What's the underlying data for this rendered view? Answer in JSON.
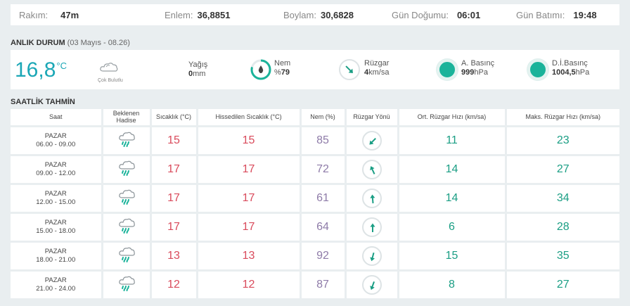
{
  "info": {
    "rakim_label": "Rakım:",
    "rakim": "47m",
    "enlem_label": "Enlem:",
    "enlem": "36,8851",
    "boylam_label": "Boylam:",
    "boylam": "30,6828",
    "gundogumu_label": "Gün Doğumu:",
    "gundogumu": "06:01",
    "gunbatimi_label": "Gün Batımı:",
    "gunbatimi": "19:48"
  },
  "current": {
    "title": "ANLIK DURUM",
    "subtitle": "(03 Mayıs - 08.26)",
    "temp": "16,8",
    "temp_unit": "°C",
    "condition": "Çok Bulutlu",
    "yagis_label": "Yağış",
    "yagis_value": "0",
    "yagis_unit": "mm",
    "nem_label": "Nem",
    "nem_prefix": "%",
    "nem_value": "79",
    "ruzgar_label": "Rüzgar",
    "ruzgar_value": "4",
    "ruzgar_unit": "km/sa",
    "abasinc_label": "A. Basınç",
    "abasinc_value": "999",
    "abasinc_unit": "hPa",
    "dibasinc_label": "D.İ.Basınç",
    "dibasinc_value": "1004,5",
    "dibasinc_unit": "hPa",
    "nem_percent": 79,
    "colors": {
      "teal": "#1ba7b6",
      "green": "#1ab39a"
    }
  },
  "forecast": {
    "title": "SAATLİK TAHMİN",
    "headers": {
      "saat": "Saat",
      "hadise_1": "Beklenen",
      "hadise_2": "Hadise",
      "sicaklik": "Sıcaklık (°C)",
      "hissedilen": "Hissedilen Sıcaklık (°C)",
      "nem": "Nem (%)",
      "yon": "Rüzgar Yönü",
      "ort": "Ort. Rüzgar Hızı (km/sa)",
      "maks": "Maks. Rüzgar Hızı (km/sa)"
    },
    "rows": [
      {
        "day": "PAZAR",
        "time": "06.00 - 09.00",
        "icon": "rain-cloud-icon",
        "temp": "15",
        "feels": "15",
        "humidity": "85",
        "wind_dir_deg": 225,
        "avg": "11",
        "max": "23"
      },
      {
        "day": "PAZAR",
        "time": "09.00 - 12.00",
        "icon": "rain-cloud-icon",
        "temp": "17",
        "feels": "17",
        "humidity": "72",
        "wind_dir_deg": 335,
        "avg": "14",
        "max": "27"
      },
      {
        "day": "PAZAR",
        "time": "12.00 - 15.00",
        "icon": "rain-cloud-icon",
        "temp": "17",
        "feels": "17",
        "humidity": "61",
        "wind_dir_deg": 355,
        "avg": "14",
        "max": "34"
      },
      {
        "day": "PAZAR",
        "time": "15.00 - 18.00",
        "icon": "rain-cloud-icon",
        "temp": "17",
        "feels": "17",
        "humidity": "64",
        "wind_dir_deg": 0,
        "avg": "6",
        "max": "28"
      },
      {
        "day": "PAZAR",
        "time": "18.00 - 21.00",
        "icon": "rain-cloud-icon",
        "temp": "13",
        "feels": "13",
        "humidity": "92",
        "wind_dir_deg": 195,
        "avg": "15",
        "max": "35"
      },
      {
        "day": "PAZAR",
        "time": "21.00 - 24.00",
        "icon": "rain-cloud-icon",
        "temp": "12",
        "feels": "12",
        "humidity": "87",
        "wind_dir_deg": 200,
        "avg": "8",
        "max": "27"
      }
    ]
  }
}
